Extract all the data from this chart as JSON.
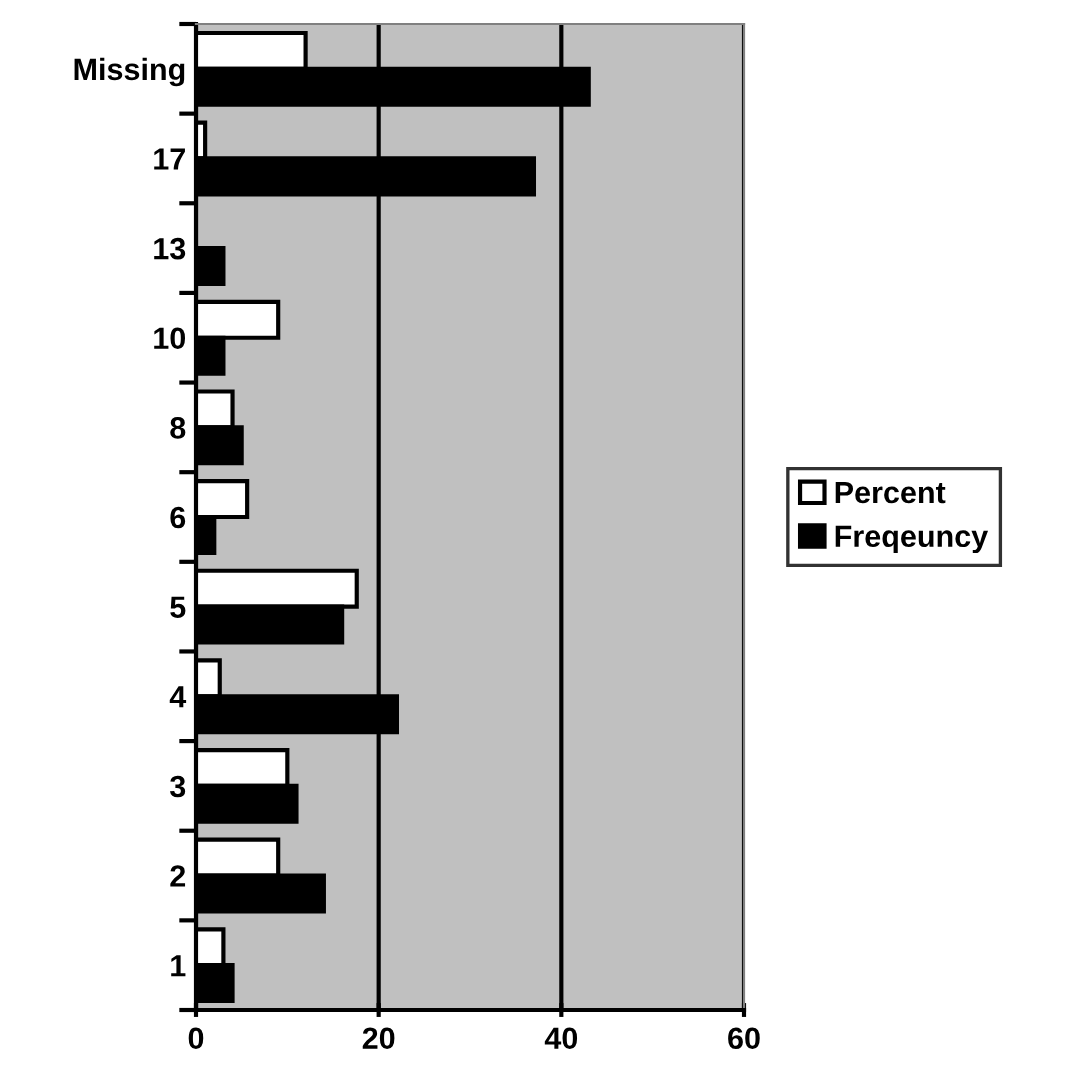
{
  "chart_data": {
    "type": "bar",
    "orientation": "horizontal",
    "categories": [
      "Missing",
      "17",
      "13",
      "10",
      "8",
      "6",
      "5",
      "4",
      "3",
      "2",
      "1"
    ],
    "series": [
      {
        "name": "Percent",
        "color": "#ffffff",
        "values": [
          12,
          1,
          0,
          9,
          4,
          5.6,
          17.6,
          2.6,
          10,
          9,
          3
        ]
      },
      {
        "name": "Freqeuncy",
        "color": "#000000",
        "values": [
          43,
          37,
          3,
          3,
          5,
          2,
          16,
          22,
          11,
          14,
          4
        ]
      }
    ],
    "xlim": [
      0,
      60
    ],
    "xticks": [
      0,
      20,
      40,
      60
    ],
    "grid": "x",
    "legend": "right"
  }
}
